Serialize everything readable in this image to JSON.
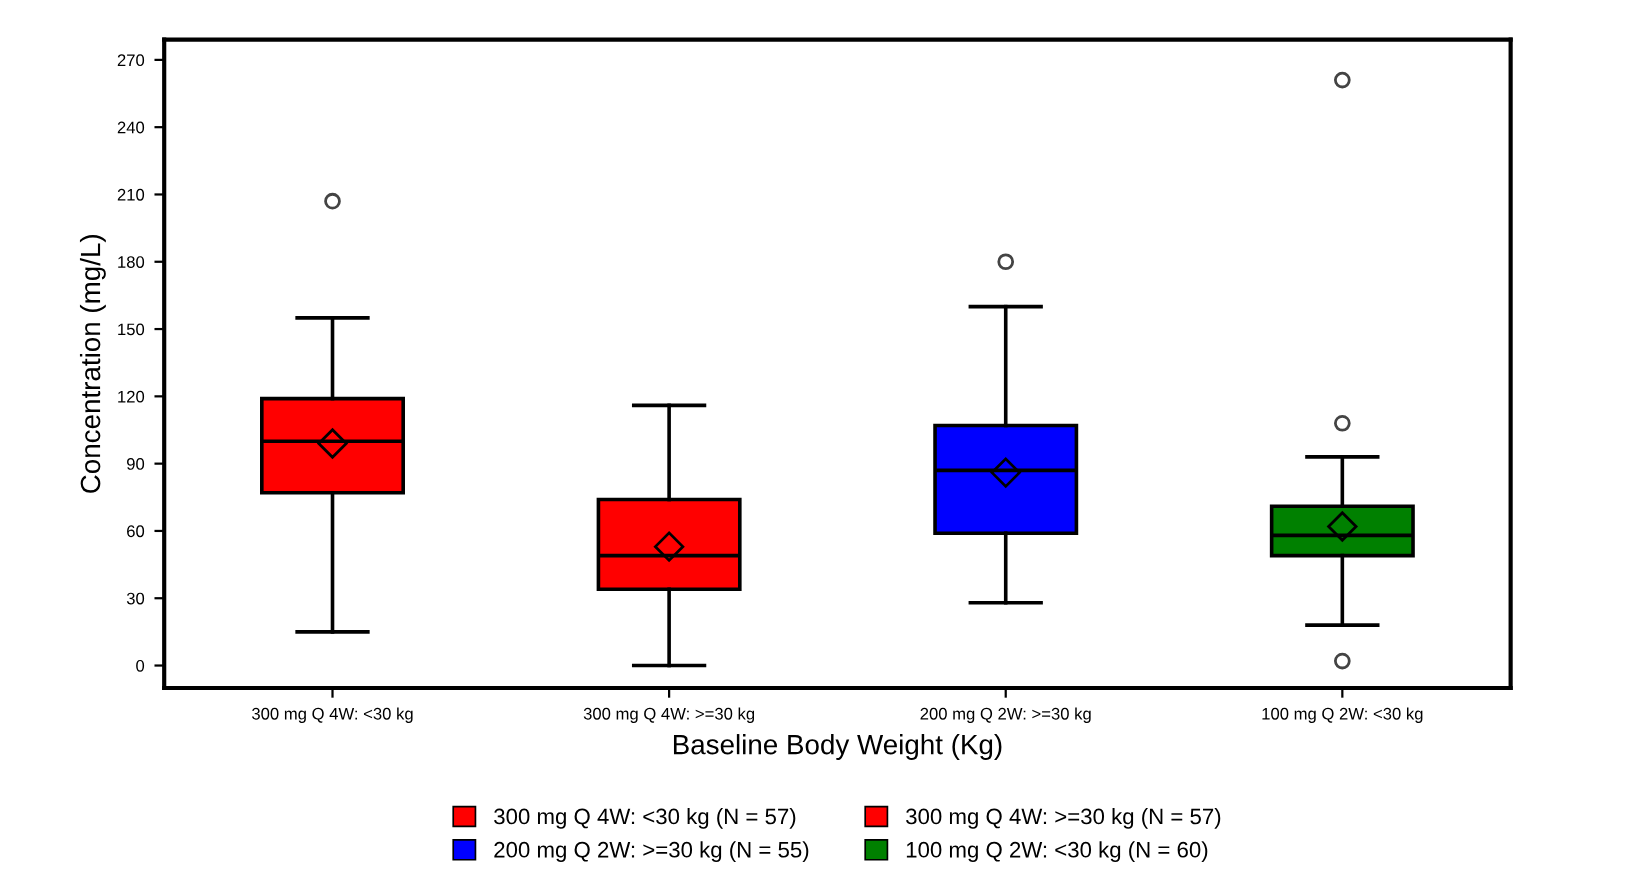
{
  "chart_data": {
    "type": "box",
    "xlabel": "Baseline Body Weight (Kg)",
    "ylabel": "Concentration (mg/L)",
    "categories": [
      "300 mg Q 4W: <30 kg",
      "300 mg Q 4W: >=30 kg",
      "200 mg Q 2W: >=30 kg",
      "100 mg Q 2W: <30 kg"
    ],
    "series": [
      {
        "name": "300 mg Q 4W: <30 kg (N = 57)",
        "color": "#ff0000",
        "boxes": [
          {
            "low": 15,
            "q1": 77,
            "median": 100,
            "q3": 119,
            "high": 155,
            "mean": 99,
            "outliers": [
              207
            ]
          },
          null,
          null,
          null
        ]
      },
      {
        "name": "300 mg Q 4W: >=30 kg (N = 57)",
        "color": "#ff0000",
        "boxes": [
          null,
          {
            "low": 0,
            "q1": 34,
            "median": 49,
            "q3": 74,
            "high": 116,
            "mean": 53
          },
          null,
          null
        ]
      },
      {
        "name": "200 mg Q 2W: >=30 kg (N = 55)",
        "color": "#0000ff",
        "boxes": [
          null,
          null,
          {
            "low": 28,
            "q1": 59,
            "median": 87,
            "q3": 107,
            "high": 160,
            "mean": 86,
            "outliers": [
              180
            ]
          },
          null
        ]
      },
      {
        "name": "100 mg Q 2W: <30 kg (N = 60)",
        "color": "#008000",
        "boxes": [
          null,
          null,
          null,
          {
            "low": 18,
            "q1": 49,
            "median": 58,
            "q3": 71,
            "high": 93,
            "mean": 62,
            "outliers": [
              261,
              108,
              2
            ]
          }
        ]
      }
    ],
    "ylim": [
      -10,
      279
    ],
    "yticks": [
      0,
      30,
      60,
      90,
      120,
      150,
      180,
      210,
      240,
      270
    ],
    "grid": false,
    "legend": "bottom"
  }
}
